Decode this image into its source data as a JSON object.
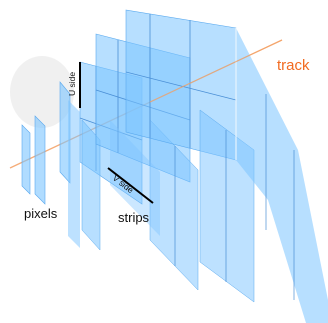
{
  "labels": {
    "track": "track",
    "pixels": "pixels",
    "strips": "strips",
    "u_side": "U side",
    "v_side": "V side"
  },
  "colors": {
    "plane_fill": "#7cc4ff",
    "plane_line": "#4a8fd6",
    "track_line": "#f4a46a",
    "track_label": "#f26b21",
    "text": "#111111"
  }
}
